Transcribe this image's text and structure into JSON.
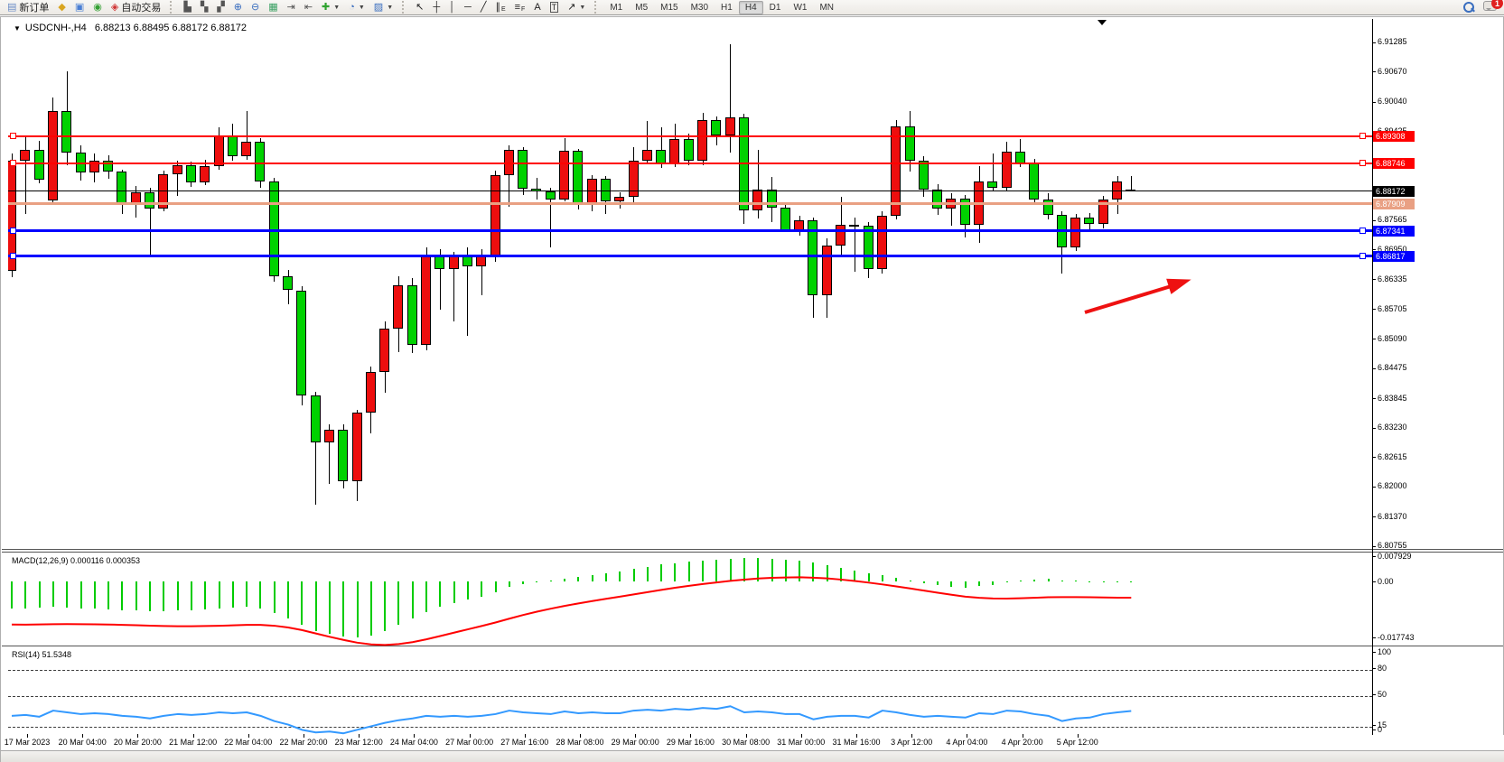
{
  "toolbar": {
    "groups": {
      "left": [
        {
          "name": "new-order-button",
          "glyph": "▤",
          "color": "#6a8cc7",
          "label": "新订单"
        },
        {
          "name": "market-watch-button",
          "glyph": "◆",
          "color": "#d9a520"
        },
        {
          "name": "data-window-button",
          "glyph": "▣",
          "color": "#4a7fd4"
        },
        {
          "name": "navigator-button",
          "glyph": "◉",
          "color": "#33a033"
        },
        {
          "name": "autotrade-button",
          "glyph": "◈",
          "color": "#cf3333",
          "label": "自动交易"
        }
      ],
      "chart": [
        {
          "name": "bars-chart-button",
          "glyph": "▙",
          "color": "#555555"
        },
        {
          "name": "candlestick-chart-button",
          "glyph": "▚",
          "color": "#555555"
        },
        {
          "name": "line-chart-button",
          "glyph": "▞",
          "color": "#555555"
        },
        {
          "name": "zoom-in-button",
          "glyph": "⊕",
          "color": "#3a6ebf"
        },
        {
          "name": "zoom-out-button",
          "glyph": "⊖",
          "color": "#3a6ebf"
        },
        {
          "name": "tile-windows-button",
          "glyph": "▦",
          "color": "#3aa063"
        },
        {
          "name": "scroll-to-end-button",
          "glyph": "⇥",
          "color": "#555555"
        },
        {
          "name": "auto-scroll-button",
          "glyph": "⇤",
          "color": "#555555"
        },
        {
          "name": "indicators-button",
          "glyph": "✚",
          "color": "#2fa32f",
          "dropdown": true
        },
        {
          "name": "periods-button",
          "glyph": "◔",
          "color": "#3a6ebf",
          "dropdown": true
        },
        {
          "name": "templates-button",
          "glyph": "▨",
          "color": "#3a6ebf",
          "dropdown": true
        }
      ],
      "tools": [
        {
          "name": "cursor-button",
          "glyph": "↖",
          "color": "#222222"
        },
        {
          "name": "crosshair-button",
          "glyph": "┼",
          "color": "#222222"
        },
        {
          "name": "vertical-line-button",
          "glyph": "│",
          "color": "#222222"
        },
        {
          "name": "horizontal-line-button",
          "glyph": "─",
          "color": "#222222"
        },
        {
          "name": "trendline-button",
          "glyph": "╱",
          "color": "#222222"
        },
        {
          "name": "equidistant-channel-button",
          "glyph": "∥",
          "sub": "E",
          "color": "#222222"
        },
        {
          "name": "fibonacci-button",
          "glyph": "≡",
          "sub": "F",
          "color": "#222222"
        },
        {
          "name": "text-button",
          "glyph": "A",
          "color": "#222222"
        },
        {
          "name": "text-label-button",
          "glyph": "T",
          "color": "#222222",
          "boxed": true
        },
        {
          "name": "arrows-button",
          "glyph": "↗",
          "color": "#222222",
          "dropdown": true
        }
      ]
    },
    "timeframes": [
      "M1",
      "M5",
      "M15",
      "M30",
      "H1",
      "H4",
      "D1",
      "W1",
      "MN"
    ],
    "active_timeframe": "H4",
    "notification_count": "1"
  },
  "window": {
    "title_symbol": "USDCNH-,H4",
    "title_quote": "6.88213 6.88495 6.88172 6.88172"
  },
  "macd_panel": {
    "label": "MACD(12,26,9)",
    "values": "0.000116 0.000353",
    "axis_labels": [
      {
        "text": "0.007929",
        "value": 0.007929
      },
      {
        "text": "0.00",
        "value": 0.0
      },
      {
        "text": "-0.017743",
        "value": -0.017743
      }
    ]
  },
  "rsi_panel": {
    "label": "RSI(14)",
    "value": "51.5348",
    "axis_labels": [
      {
        "text": "100",
        "value": 100
      },
      {
        "text": "80",
        "value": 80
      },
      {
        "text": "50",
        "value": 50
      },
      {
        "text": "15",
        "value": 15
      },
      {
        "text": "0",
        "value": 0
      }
    ],
    "dashed_levels": [
      80,
      50,
      15
    ]
  },
  "chart_data": {
    "type": "candlestick",
    "symbol": "USDCNH",
    "timeframe": "H4",
    "title": "USDCNH-,H4 6.88213 6.88495 6.88172 6.88172",
    "bull_color": "#ed0e0e",
    "bear_color": "#00d200",
    "note": "Chinese color convention: red = up, green = down",
    "ylim": [
      6.8071,
      6.9177
    ],
    "price_axis_labels": [
      "6.91285",
      "6.90670",
      "6.90040",
      "6.89425",
      "6.87565",
      "6.86950",
      "6.86335",
      "6.85705",
      "6.85090",
      "6.84475",
      "6.83845",
      "6.83230",
      "6.82615",
      "6.82000",
      "6.81370",
      "6.80755"
    ],
    "time_axis_labels": [
      "17 Mar 2023",
      "20 Mar 04:00",
      "20 Mar 20:00",
      "21 Mar 12:00",
      "22 Mar 04:00",
      "22 Mar 20:00",
      "23 Mar 12:00",
      "24 Mar 04:00",
      "27 Mar 00:00",
      "27 Mar 16:00",
      "28 Mar 08:00",
      "29 Mar 00:00",
      "29 Mar 16:00",
      "30 Mar 08:00",
      "31 Mar 00:00",
      "31 Mar 16:00",
      "3 Apr 12:00",
      "4 Apr 04:00",
      "4 Apr 20:00",
      "5 Apr 12:00"
    ],
    "levels": [
      {
        "price": 6.89308,
        "badge": "6.89308",
        "color": "#ff0000",
        "thickness": 2,
        "markers": true,
        "name": "resistance-line-1"
      },
      {
        "price": 6.88746,
        "badge": "6.88746",
        "color": "#ff0000",
        "thickness": 2,
        "markers": true,
        "name": "resistance-line-2"
      },
      {
        "price": 6.88172,
        "badge": "6.88172",
        "color": "#000000",
        "thickness": 1,
        "markers": false,
        "name": "current-price-line"
      },
      {
        "price": 6.87909,
        "badge": "6.87909",
        "color": "#e9a083",
        "thickness": 3,
        "markers": false,
        "name": "pivot-line"
      },
      {
        "price": 6.87341,
        "badge": "6.87341",
        "color": "#0000ff",
        "thickness": 3,
        "markers": true,
        "name": "support-line-1"
      },
      {
        "price": 6.86817,
        "badge": "6.86817",
        "color": "#0000ff",
        "thickness": 3,
        "markers": true,
        "name": "support-line-2"
      }
    ],
    "candles": [
      [
        6.865,
        6.8895,
        6.8638,
        6.888
      ],
      [
        6.888,
        6.893,
        6.877,
        6.8903
      ],
      [
        6.8903,
        6.8922,
        6.8834,
        6.8842
      ],
      [
        6.8797,
        6.9013,
        6.8788,
        6.8985
      ],
      [
        6.8985,
        6.9068,
        6.8872,
        6.8898
      ],
      [
        6.8898,
        6.8912,
        6.884,
        6.8857
      ],
      [
        6.8857,
        6.8895,
        6.8836,
        6.888
      ],
      [
        6.888,
        6.8892,
        6.8843,
        6.8858
      ],
      [
        6.8858,
        6.8862,
        6.877,
        6.879
      ],
      [
        6.879,
        6.8828,
        6.8762,
        6.8815
      ],
      [
        6.8815,
        6.8825,
        6.868,
        6.878
      ],
      [
        6.878,
        6.886,
        6.8776,
        6.8852
      ],
      [
        6.8852,
        6.888,
        6.8808,
        6.8872
      ],
      [
        6.8872,
        6.8878,
        6.8826,
        6.8836
      ],
      [
        6.8836,
        6.8882,
        6.883,
        6.887
      ],
      [
        6.887,
        6.895,
        6.8862,
        6.8932
      ],
      [
        6.8932,
        6.8958,
        6.888,
        6.889
      ],
      [
        6.889,
        6.8985,
        6.8882,
        6.892
      ],
      [
        6.892,
        6.8928,
        6.8825,
        6.8838
      ],
      [
        6.8838,
        6.8845,
        6.8628,
        6.864
      ],
      [
        6.864,
        6.8652,
        6.858,
        6.861
      ],
      [
        6.861,
        6.8618,
        6.837,
        6.839
      ],
      [
        6.839,
        6.8398,
        6.8162,
        6.8292
      ],
      [
        6.8292,
        6.833,
        6.8205,
        6.8318
      ],
      [
        6.8318,
        6.833,
        6.8195,
        6.821
      ],
      [
        6.821,
        6.836,
        6.817,
        6.8355
      ],
      [
        6.8355,
        6.845,
        6.831,
        6.844
      ],
      [
        6.844,
        6.8545,
        6.8395,
        6.853
      ],
      [
        6.853,
        6.864,
        6.848,
        6.862
      ],
      [
        6.862,
        6.8635,
        6.8478,
        6.8495
      ],
      [
        6.8495,
        6.87,
        6.8485,
        6.8685
      ],
      [
        6.8685,
        6.8695,
        6.857,
        6.8655
      ],
      [
        6.8655,
        6.869,
        6.8545,
        6.868
      ],
      [
        6.868,
        6.87,
        6.8515,
        6.866
      ],
      [
        6.866,
        6.8695,
        6.86,
        6.868
      ],
      [
        6.868,
        6.886,
        6.867,
        6.885
      ],
      [
        6.885,
        6.8912,
        6.8785,
        6.8903
      ],
      [
        6.8903,
        6.891,
        6.881,
        6.8822
      ],
      [
        6.8822,
        6.8845,
        6.88,
        6.8816
      ],
      [
        6.8816,
        6.8825,
        6.87,
        6.88
      ],
      [
        6.88,
        6.8927,
        6.8795,
        6.8901
      ],
      [
        6.8901,
        6.8905,
        6.8778,
        6.8791
      ],
      [
        6.8791,
        6.885,
        6.8775,
        6.8843
      ],
      [
        6.8843,
        6.8848,
        6.877,
        6.8796
      ],
      [
        6.8796,
        6.8815,
        6.878,
        6.8805
      ],
      [
        6.8805,
        6.891,
        6.879,
        6.888
      ],
      [
        6.888,
        6.8963,
        6.8875,
        6.8903
      ],
      [
        6.8903,
        6.895,
        6.8865,
        6.8875
      ],
      [
        6.8875,
        6.8958,
        6.8868,
        6.8926
      ],
      [
        6.8926,
        6.8938,
        6.8872,
        6.888
      ],
      [
        6.888,
        6.898,
        6.8872,
        6.8965
      ],
      [
        6.8965,
        6.8973,
        6.8912,
        6.8933
      ],
      [
        6.8933,
        6.9125,
        6.8898,
        6.8972
      ],
      [
        6.8972,
        6.8978,
        6.8749,
        6.8777
      ],
      [
        6.8777,
        6.8903,
        6.876,
        6.8821
      ],
      [
        6.8821,
        6.8846,
        6.8752,
        6.8783
      ],
      [
        6.8783,
        6.879,
        6.8733,
        6.8736
      ],
      [
        6.8736,
        6.8765,
        6.8724,
        6.8757
      ],
      [
        6.8757,
        6.8762,
        6.8552,
        6.8599
      ],
      [
        6.8599,
        6.8718,
        6.8552,
        6.8703
      ],
      [
        6.8703,
        6.8806,
        6.8683,
        6.8746
      ],
      [
        6.8746,
        6.8762,
        6.8649,
        6.8744
      ],
      [
        6.8744,
        6.8752,
        6.8636,
        6.8655
      ],
      [
        6.8655,
        6.8775,
        6.8645,
        6.8765
      ],
      [
        6.8765,
        6.8965,
        6.8758,
        6.8952
      ],
      [
        6.8952,
        6.8985,
        6.8858,
        6.888
      ],
      [
        6.888,
        6.889,
        6.8806,
        6.882
      ],
      [
        6.882,
        6.8832,
        6.8768,
        6.878
      ],
      [
        6.878,
        6.8812,
        6.8745,
        6.8802
      ],
      [
        6.8802,
        6.881,
        6.872,
        6.8746
      ],
      [
        6.8746,
        6.887,
        6.871,
        6.8838
      ],
      [
        6.8838,
        6.8895,
        6.8818,
        6.8824
      ],
      [
        6.8824,
        6.892,
        6.8818,
        6.89
      ],
      [
        6.89,
        6.8926,
        6.8868,
        6.8876
      ],
      [
        6.8876,
        6.8885,
        6.879,
        6.88
      ],
      [
        6.88,
        6.8812,
        6.8758,
        6.8768
      ],
      [
        6.8768,
        6.8775,
        6.8645,
        6.87
      ],
      [
        6.87,
        6.877,
        6.8692,
        6.8762
      ],
      [
        6.8762,
        6.8772,
        6.8736,
        6.8748
      ],
      [
        6.8748,
        6.8808,
        6.874,
        6.88
      ],
      [
        6.88,
        6.8848,
        6.877,
        6.8838
      ],
      [
        6.88213,
        6.88495,
        6.88172,
        6.88172
      ]
    ],
    "indicators": [
      {
        "type": "macd",
        "params": [
          12,
          26,
          9
        ],
        "main_current": 0.000116,
        "signal_current": 0.000353,
        "range": [
          -0.017743,
          0.007929
        ],
        "histogram": [
          -0.0085,
          -0.0086,
          -0.0083,
          -0.008,
          -0.0082,
          -0.0085,
          -0.0086,
          -0.0088,
          -0.009,
          -0.0092,
          -0.0095,
          -0.0094,
          -0.0092,
          -0.009,
          -0.0088,
          -0.0085,
          -0.0082,
          -0.008,
          -0.0086,
          -0.01,
          -0.0116,
          -0.0136,
          -0.0156,
          -0.0166,
          -0.0173,
          -0.0177,
          -0.017,
          -0.0156,
          -0.0136,
          -0.0116,
          -0.0096,
          -0.008,
          -0.0068,
          -0.0058,
          -0.0048,
          -0.0034,
          -0.0018,
          -0.0008,
          -0.0002,
          0.0003,
          0.0009,
          0.0013,
          0.0019,
          0.0025,
          0.0031,
          0.0039,
          0.0046,
          0.0053,
          0.0058,
          0.0062,
          0.0066,
          0.0069,
          0.0072,
          0.0074,
          0.0074,
          0.0072,
          0.0069,
          0.0066,
          0.0059,
          0.0051,
          0.0043,
          0.0035,
          0.0027,
          0.0019,
          0.0011,
          0.0003,
          -0.0005,
          -0.0011,
          -0.0017,
          -0.0021,
          -0.0015,
          -0.001,
          -0.0004,
          0.0002,
          0.0006,
          0.0008,
          0.0004,
          0.0002,
          0.0,
          -0.0002,
          -0.0004,
          0.0001
        ],
        "histogram_color": "#00cc00",
        "signal_color": "#ff0000"
      },
      {
        "type": "rsi",
        "params": [
          14
        ],
        "current": 51.5348,
        "levels": [
          80,
          50,
          15
        ],
        "line_color": "#3399ff",
        "values": [
          46,
          47,
          45,
          52,
          50,
          48,
          49,
          48,
          46,
          45,
          43,
          46,
          48,
          47,
          48,
          50,
          49,
          50,
          46,
          40,
          36,
          30,
          27,
          28,
          26,
          30,
          34,
          38,
          41,
          43,
          46,
          45,
          46,
          45,
          46,
          48,
          52,
          50,
          49,
          48,
          51,
          49,
          50,
          49,
          49,
          52,
          53,
          52,
          54,
          53,
          55,
          54,
          57,
          50,
          51,
          50,
          48,
          48,
          42,
          45,
          46,
          46,
          44,
          52,
          50,
          47,
          45,
          46,
          45,
          44,
          49,
          48,
          52,
          51,
          48,
          46,
          40,
          43,
          44,
          48,
          50,
          51.5
        ]
      }
    ],
    "annotations": [
      {
        "type": "arrow",
        "color": "#ee1111",
        "from_xy": [
          1200,
          309
        ],
        "to_xy": [
          1310,
          275
        ],
        "meaning": "points to support line 6.86817"
      }
    ]
  }
}
